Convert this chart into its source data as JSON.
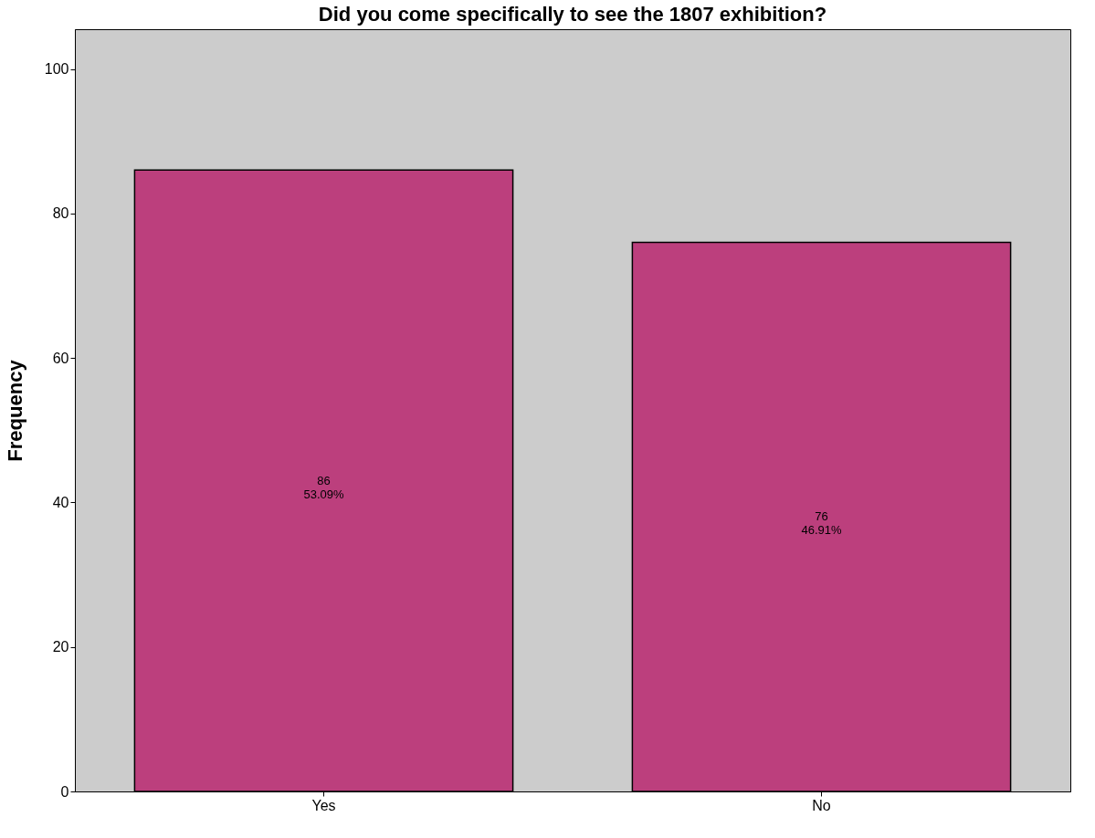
{
  "chart_data": {
    "type": "bar",
    "title": "Did you come specifically to see the 1807 exhibition?",
    "ylabel": "Frequency",
    "categories": [
      "Yes",
      "No"
    ],
    "values": [
      86,
      76
    ],
    "value_labels": [
      "86\n53.09%",
      "76\n46.91%"
    ],
    "color": "#bc3f7d",
    "ylim": [
      0,
      105.5
    ],
    "yticks": [
      0,
      20,
      40,
      60,
      80,
      100
    ],
    "grid": false
  }
}
